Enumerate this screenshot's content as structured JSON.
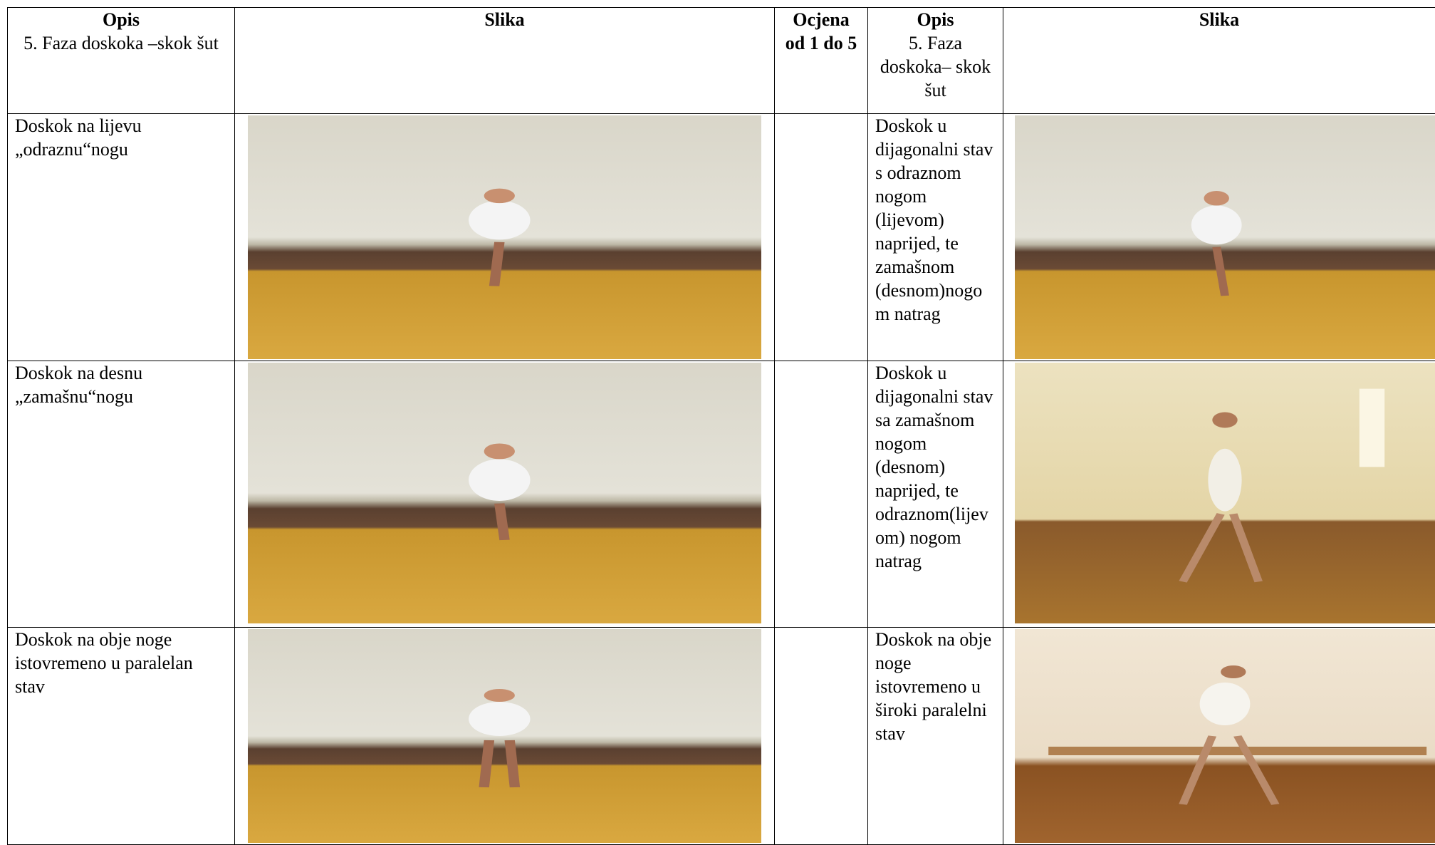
{
  "table": {
    "header": {
      "opis": "Opis",
      "faza": "5. Faza doskoka –skok šut",
      "slika": "Slika",
      "ocjena": "Ocjena od 1 do 5",
      "opis2": "Opis",
      "faza2": "5. Faza doskoka– skok šut",
      "slika2": "Slika"
    },
    "rows": [
      {
        "left": "Doskok na lijevu „odraznu“nogu",
        "right": "Doskok u dijagonalni stav s odraznom nogom (lijevom) naprijed, te zamašnom (desnom)nogom natrag"
      },
      {
        "left": "Doskok na desnu „zamašnu“nogu",
        "right": "Doskok u dijagonalni stav sa zamašnom nogom (desnom) naprijed, te odraznom(lijevom) nogom natrag"
      },
      {
        "left": "Doskok na obje noge istovremeno u paralelan stav",
        "right": "Doskok na obje noge istovremeno u široki paralelni stav"
      }
    ]
  }
}
